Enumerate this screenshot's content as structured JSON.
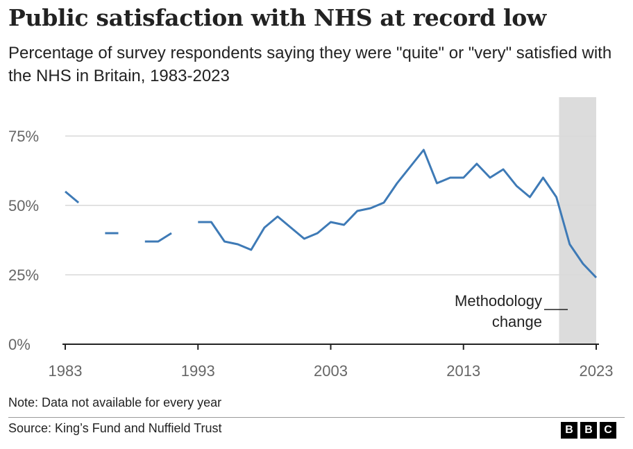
{
  "title": "Public satisfaction with NHS at record low",
  "subtitle": "Percentage of survey respondents saying they were \"quite\" or \"very\" satisfied with the NHS in Britain, 1983-2023",
  "note": "Note: Data not available for every year",
  "source": "Source: King’s Fund and Nuffield Trust",
  "logo": [
    "B",
    "B",
    "C"
  ],
  "colors": {
    "line": "#3e7ab6",
    "band": "#dcdcdc",
    "grid": "#d9d9d9",
    "axis": "#222222"
  },
  "chart_data": {
    "type": "line",
    "title": "Public satisfaction with NHS at record low",
    "xlabel": "",
    "ylabel": "",
    "xlim": [
      1983,
      2023
    ],
    "ylim": [
      0,
      75
    ],
    "x_ticks": [
      1983,
      1993,
      2003,
      2013,
      2023
    ],
    "x_tick_labels": [
      "1983",
      "1993",
      "2003",
      "2013",
      "2023"
    ],
    "y_ticks": [
      0,
      25,
      50,
      75
    ],
    "y_tick_labels": [
      "0%",
      "25%",
      "50%",
      "75%"
    ],
    "grid": true,
    "series": [
      {
        "segments": [
          [
            [
              1983,
              55
            ],
            [
              1984,
              51
            ]
          ],
          [
            [
              1986,
              40
            ],
            [
              1987,
              40
            ]
          ],
          [
            [
              1989,
              37
            ],
            [
              1990,
              37
            ],
            [
              1991,
              40
            ]
          ],
          [
            [
              1993,
              44
            ],
            [
              1994,
              44
            ],
            [
              1995,
              37
            ],
            [
              1996,
              36
            ],
            [
              1997,
              34
            ],
            [
              1998,
              42
            ],
            [
              1999,
              46
            ],
            [
              2000,
              42
            ],
            [
              2001,
              38
            ],
            [
              2002,
              40
            ],
            [
              2003,
              44
            ],
            [
              2004,
              43
            ],
            [
              2005,
              48
            ],
            [
              2006,
              49
            ],
            [
              2007,
              51
            ],
            [
              2008,
              58
            ],
            [
              2009,
              64
            ],
            [
              2010,
              70
            ],
            [
              2011,
              58
            ],
            [
              2012,
              60
            ],
            [
              2013,
              60
            ],
            [
              2014,
              65
            ],
            [
              2015,
              60
            ],
            [
              2016,
              63
            ],
            [
              2017,
              57
            ],
            [
              2018,
              53
            ],
            [
              2019,
              60
            ],
            [
              2020,
              53
            ],
            [
              2021,
              36
            ],
            [
              2022,
              29
            ],
            [
              2023,
              24
            ]
          ]
        ]
      }
    ],
    "shaded_region": {
      "x": [
        2020.2,
        2023
      ]
    },
    "annotation": {
      "lines": [
        "Methodology",
        "change"
      ]
    }
  }
}
